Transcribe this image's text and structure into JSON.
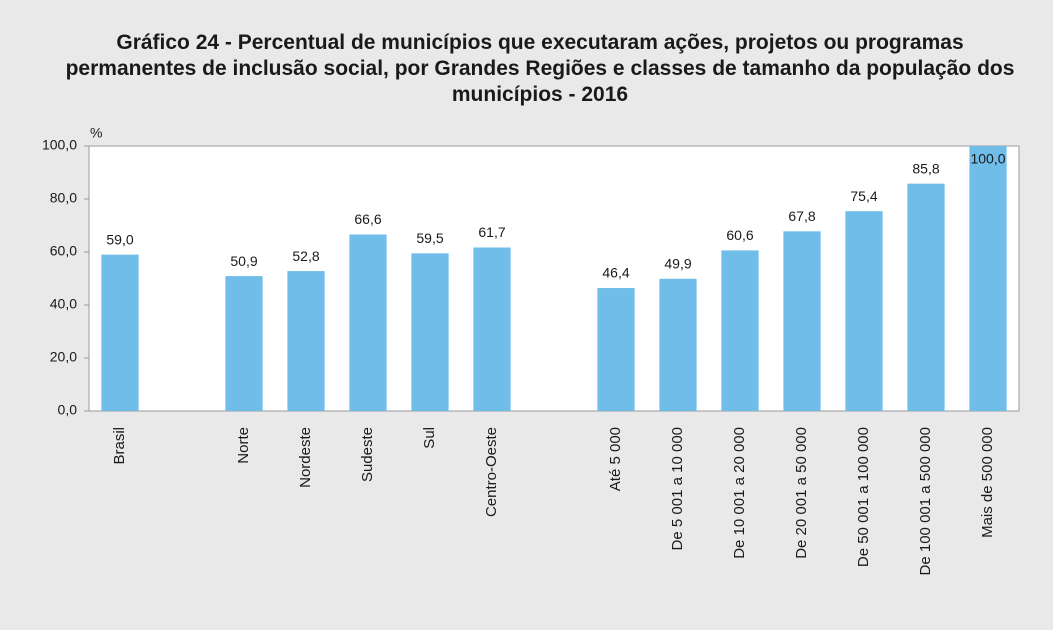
{
  "chart_data": {
    "type": "bar",
    "title": "Gráfico 24 - Percentual de municípios que executaram ações, projetos ou programas permanentes de inclusão social, por Grandes Regiões e classes de tamanho da população dos municípios - 2016",
    "y_label": "%",
    "categories": [
      "Brasil",
      null,
      "Norte",
      "Nordeste",
      "Sudeste",
      "Sul",
      "Centro-Oeste",
      null,
      "Até 5 000",
      "De 5 001 a 10 000",
      "De 10 001 a 20 000",
      "De 20 001 a 50 000",
      "De 50 001 a 100 000",
      "De 100 001 a 500 000",
      "Mais de 500 000"
    ],
    "values": [
      59.0,
      null,
      50.9,
      52.8,
      66.6,
      59.5,
      61.7,
      null,
      46.4,
      49.9,
      60.6,
      67.8,
      75.4,
      85.8,
      100.0
    ],
    "value_labels": [
      "59,0",
      null,
      "50,9",
      "52,8",
      "66,6",
      "59,5",
      "61,7",
      null,
      "46,4",
      "49,9",
      "60,6",
      "67,8",
      "75,4",
      "85,8",
      "100,0"
    ],
    "color": "#6fbde8",
    "ylim": [
      0,
      100
    ],
    "yticks": [
      {
        "value": 0,
        "label": "0,0"
      },
      {
        "value": 20,
        "label": "20,0"
      },
      {
        "value": 40,
        "label": "40,0"
      },
      {
        "value": 60,
        "label": "60,0"
      },
      {
        "value": 80,
        "label": "80,0"
      },
      {
        "value": 100,
        "label": "100,0"
      }
    ],
    "grid": false
  }
}
